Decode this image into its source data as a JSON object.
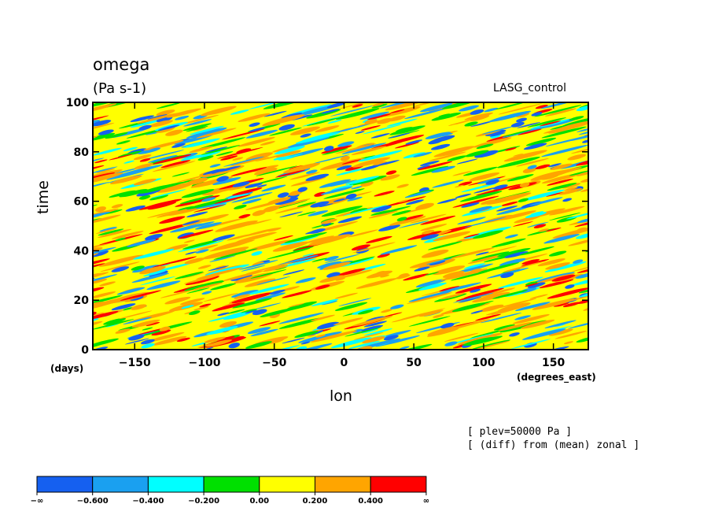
{
  "chart_data": {
    "type": "heatmap",
    "title": "omega",
    "units": "(Pa s-1)",
    "run_label": "LASG_control",
    "xlabel": "lon",
    "x_units": "(degrees_east)",
    "ylabel": "time",
    "y_units": "(days)",
    "xlim": [
      -180,
      175
    ],
    "ylim": [
      0,
      100
    ],
    "x_ticks": [
      -150,
      -100,
      -50,
      0,
      50,
      100,
      150
    ],
    "y_ticks": [
      0,
      20,
      40,
      60,
      80,
      100
    ],
    "notes": [
      "[ plev=50000 Pa ]",
      "[ (diff) from (mean) zonal ]"
    ],
    "colorbar": {
      "levels": [
        "-∞",
        "-0.600",
        "-0.400",
        "-0.200",
        "0.00",
        "0.200",
        "0.400",
        "∞"
      ],
      "colors": [
        "#1560f0",
        "#1aa0f0",
        "#00ffff",
        "#00e000",
        "#ffff00",
        "#ffa500",
        "#ff0000"
      ]
    },
    "pattern": "eastward-propagating bands sloping toward larger longitude with increasing time; positive (yellow/orange) anomalies dominate, negative (blue/green) anomalies appear as elongated streaks"
  }
}
